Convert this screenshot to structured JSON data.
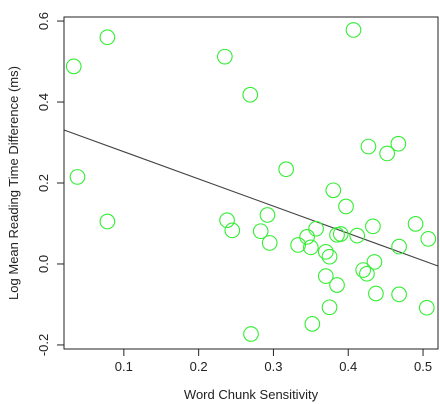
{
  "chart_data": {
    "type": "scatter",
    "xlabel": "Word Chunk Sensitivity",
    "ylabel": "Log Mean Reading Time Difference (ms)",
    "xlim": [
      0.02,
      0.52
    ],
    "ylim": [
      -0.21,
      0.61
    ],
    "x_ticks": [
      0.1,
      0.2,
      0.3,
      0.4,
      0.5
    ],
    "x_tick_labels": [
      "0.1",
      "0.2",
      "0.3",
      "0.4",
      "0.5"
    ],
    "y_ticks": [
      -0.2,
      0.0,
      0.2,
      0.4,
      0.6
    ],
    "y_tick_labels": [
      "-0.2",
      "0.0",
      "0.2",
      "0.4",
      "0.6"
    ],
    "grid": false,
    "marker": "open-circle",
    "point_color": "#33ee33",
    "line_color": "#444444",
    "regression_line": {
      "x": [
        0.02,
        0.52
      ],
      "y": [
        0.331,
        -0.005
      ]
    },
    "points": [
      {
        "x": 0.033,
        "y": 0.488
      },
      {
        "x": 0.038,
        "y": 0.215
      },
      {
        "x": 0.078,
        "y": 0.56
      },
      {
        "x": 0.078,
        "y": 0.105
      },
      {
        "x": 0.235,
        "y": 0.512
      },
      {
        "x": 0.238,
        "y": 0.108
      },
      {
        "x": 0.245,
        "y": 0.083
      },
      {
        "x": 0.269,
        "y": 0.418
      },
      {
        "x": 0.283,
        "y": 0.081
      },
      {
        "x": 0.292,
        "y": 0.121
      },
      {
        "x": 0.295,
        "y": 0.052
      },
      {
        "x": 0.317,
        "y": 0.234
      },
      {
        "x": 0.333,
        "y": 0.047
      },
      {
        "x": 0.345,
        "y": 0.067
      },
      {
        "x": 0.35,
        "y": 0.041
      },
      {
        "x": 0.357,
        "y": 0.087
      },
      {
        "x": 0.37,
        "y": 0.03
      },
      {
        "x": 0.375,
        "y": 0.018
      },
      {
        "x": 0.37,
        "y": -0.03
      },
      {
        "x": 0.38,
        "y": 0.182
      },
      {
        "x": 0.385,
        "y": 0.072
      },
      {
        "x": 0.39,
        "y": 0.074
      },
      {
        "x": 0.397,
        "y": 0.142
      },
      {
        "x": 0.412,
        "y": 0.07
      },
      {
        "x": 0.42,
        "y": -0.015
      },
      {
        "x": 0.425,
        "y": -0.024
      },
      {
        "x": 0.435,
        "y": 0.005
      },
      {
        "x": 0.385,
        "y": -0.052
      },
      {
        "x": 0.375,
        "y": -0.107
      },
      {
        "x": 0.352,
        "y": -0.148
      },
      {
        "x": 0.27,
        "y": -0.173
      },
      {
        "x": 0.437,
        "y": -0.073
      },
      {
        "x": 0.468,
        "y": -0.075
      },
      {
        "x": 0.433,
        "y": 0.093
      },
      {
        "x": 0.407,
        "y": 0.578
      },
      {
        "x": 0.427,
        "y": 0.29
      },
      {
        "x": 0.452,
        "y": 0.273
      },
      {
        "x": 0.467,
        "y": 0.297
      },
      {
        "x": 0.468,
        "y": 0.043
      },
      {
        "x": 0.49,
        "y": 0.099
      },
      {
        "x": 0.507,
        "y": 0.062
      },
      {
        "x": 0.505,
        "y": -0.108
      }
    ]
  }
}
